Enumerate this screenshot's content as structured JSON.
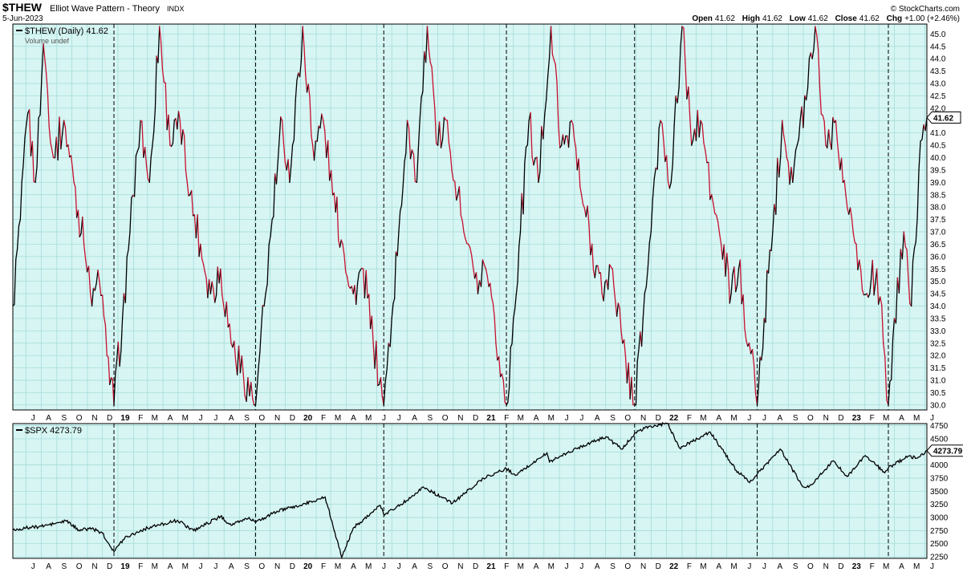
{
  "header": {
    "symbol": "$THEW",
    "name": "Elliot Wave Pattern - Theory",
    "exchange": "INDX",
    "date": "5-Jun-2023",
    "watermark": "© StockCharts.com",
    "ohlc": {
      "open_label": "Open",
      "open": "41.62",
      "high_label": "High",
      "high": "41.62",
      "low_label": "Low",
      "low": "41.62",
      "close_label": "Close",
      "close": "41.62",
      "chg_label": "Chg",
      "chg": "+1.00 (+2.46%)"
    }
  },
  "colors": {
    "panel_bg": "#d6f5f3",
    "grid": "#9fd9d6",
    "up": "#000000",
    "down": "#c8102e",
    "spx_line": "#000000"
  },
  "chart_data": [
    {
      "type": "line",
      "title": "$THEW (Daily) 41.62",
      "legend": "$THEW (Daily) 41.62",
      "volume_note": "Volume undef",
      "last_value_label": "41.62",
      "last_value": 41.62,
      "ylim": [
        29.8,
        45.4
      ],
      "yticks": [
        30.0,
        30.5,
        31.0,
        31.5,
        32.0,
        32.5,
        33.0,
        33.5,
        34.0,
        34.5,
        35.0,
        35.5,
        36.0,
        36.5,
        37.0,
        37.5,
        38.0,
        38.5,
        39.0,
        39.5,
        40.0,
        40.5,
        41.0,
        41.5,
        42.0,
        42.5,
        43.0,
        43.5,
        44.0,
        44.5,
        45.0,
        45.5
      ],
      "ytick_labels": [
        "30.0",
        "30.5",
        "31.0",
        "31.5",
        "32.0",
        "32.5",
        "33.0",
        "33.5",
        "34.0",
        "34.5",
        "35.0",
        "35.5",
        "36.0",
        "36.5",
        "37.0",
        "37.5",
        "38.0",
        "38.5",
        "39.0",
        "39.5",
        "40.0",
        "40.5",
        "41.0",
        "41.5",
        "42.0",
        "42.5",
        "43.0",
        "43.5",
        "44.0",
        "44.5",
        "45.0",
        "45.5"
      ],
      "x_range": [
        "2018-06-05",
        "2023-06-05"
      ],
      "pattern": {
        "description": "repeating Elliott wave cycle",
        "cycle_markers": [
          "2018-12-24",
          "2019-10-03",
          "2020-06-15",
          "2021-02-15",
          "2021-10-29",
          "2022-07-01",
          "2023-03-20"
        ],
        "cycle_low": 30.0,
        "cycle_high": 45.4
      },
      "series": [
        {
          "points": [
            [
              "2018-06-05",
              34.0
            ],
            [
              "2018-06-20",
              37.5
            ],
            [
              "2018-07-05",
              41.8
            ],
            [
              "2018-07-20",
              39.0
            ],
            [
              "2018-08-05",
              44.6
            ],
            [
              "2018-08-25",
              40.0
            ],
            [
              "2018-09-15",
              41.5
            ],
            [
              "2018-10-05",
              39.0
            ],
            [
              "2018-10-25",
              36.5
            ],
            [
              "2018-11-10",
              34.0
            ],
            [
              "2018-11-25",
              35.0
            ],
            [
              "2018-12-10",
              32.0
            ],
            [
              "2018-12-24",
              30.0
            ],
            [
              "2019-01-10",
              33.5
            ],
            [
              "2019-01-25",
              37.0
            ],
            [
              "2019-02-15",
              41.5
            ],
            [
              "2019-03-05",
              39.0
            ],
            [
              "2019-03-25",
              45.3
            ],
            [
              "2019-04-15",
              40.5
            ],
            [
              "2019-05-05",
              41.5
            ],
            [
              "2019-05-25",
              38.5
            ],
            [
              "2019-06-15",
              36.5
            ],
            [
              "2019-07-05",
              34.5
            ],
            [
              "2019-07-25",
              35.5
            ],
            [
              "2019-08-15",
              32.5
            ],
            [
              "2019-10-03",
              30.0
            ],
            [
              "2019-10-20",
              34.0
            ],
            [
              "2019-11-05",
              37.5
            ],
            [
              "2019-11-25",
              41.5
            ],
            [
              "2019-12-10",
              39.0
            ],
            [
              "2020-01-05",
              45.3
            ],
            [
              "2020-01-25",
              40.5
            ],
            [
              "2020-02-15",
              41.5
            ],
            [
              "2020-03-05",
              38.5
            ],
            [
              "2020-03-25",
              36.5
            ],
            [
              "2020-04-15",
              34.5
            ],
            [
              "2020-05-05",
              35.5
            ],
            [
              "2020-05-25",
              32.5
            ],
            [
              "2020-06-15",
              30.0
            ],
            [
              "2020-07-01",
              33.5
            ],
            [
              "2020-07-15",
              37.0
            ],
            [
              "2020-08-01",
              41.5
            ],
            [
              "2020-08-20",
              39.0
            ],
            [
              "2020-09-10",
              45.3
            ],
            [
              "2020-10-01",
              40.5
            ],
            [
              "2020-10-20",
              41.5
            ],
            [
              "2020-11-10",
              38.5
            ],
            [
              "2020-12-01",
              36.5
            ],
            [
              "2020-12-20",
              34.5
            ],
            [
              "2021-01-05",
              35.5
            ],
            [
              "2021-01-25",
              32.5
            ],
            [
              "2021-02-15",
              30.0
            ],
            [
              "2021-03-01",
              33.5
            ],
            [
              "2021-03-15",
              37.0
            ],
            [
              "2021-04-01",
              41.5
            ],
            [
              "2021-04-20",
              39.0
            ],
            [
              "2021-05-15",
              45.3
            ],
            [
              "2021-06-05",
              40.5
            ],
            [
              "2021-06-25",
              41.5
            ],
            [
              "2021-07-15",
              38.5
            ],
            [
              "2021-08-05",
              36.5
            ],
            [
              "2021-08-25",
              34.5
            ],
            [
              "2021-09-15",
              35.5
            ],
            [
              "2021-10-05",
              32.5
            ],
            [
              "2021-10-29",
              30.0
            ],
            [
              "2021-11-15",
              33.5
            ],
            [
              "2021-12-01",
              37.0
            ],
            [
              "2021-12-20",
              41.5
            ],
            [
              "2022-01-10",
              39.0
            ],
            [
              "2022-02-01",
              45.3
            ],
            [
              "2022-02-20",
              40.5
            ],
            [
              "2022-03-10",
              41.5
            ],
            [
              "2022-04-01",
              38.5
            ],
            [
              "2022-04-20",
              36.5
            ],
            [
              "2022-05-10",
              34.5
            ],
            [
              "2022-05-25",
              35.5
            ],
            [
              "2022-06-15",
              32.5
            ],
            [
              "2022-07-01",
              30.0
            ],
            [
              "2022-07-15",
              33.5
            ],
            [
              "2022-08-01",
              37.0
            ],
            [
              "2022-08-20",
              41.5
            ],
            [
              "2022-09-10",
              39.0
            ],
            [
              "2022-10-25",
              45.3
            ],
            [
              "2022-11-15",
              40.5
            ],
            [
              "2022-12-05",
              41.5
            ],
            [
              "2022-12-25",
              38.5
            ],
            [
              "2023-01-15",
              36.5
            ],
            [
              "2023-02-05",
              34.5
            ],
            [
              "2023-02-25",
              35.5
            ],
            [
              "2023-03-10",
              32.5
            ],
            [
              "2023-03-20",
              30.0
            ],
            [
              "2023-04-01",
              33.5
            ],
            [
              "2023-04-20",
              37.0
            ],
            [
              "2023-05-05",
              34.0
            ],
            [
              "2023-05-20",
              39.5
            ],
            [
              "2023-06-05",
              41.62
            ]
          ]
        }
      ]
    },
    {
      "type": "line",
      "title": "$SPX 4273.79",
      "legend": "$SPX 4273.79",
      "last_value_label": "4273.79",
      "last_value": 4273.79,
      "ylim": [
        2220,
        4790
      ],
      "yticks": [
        2250,
        2500,
        2750,
        3000,
        3250,
        3500,
        3750,
        4000,
        4250,
        4500,
        4750
      ],
      "ytick_labels": [
        "2250",
        "2500",
        "2750",
        "3000",
        "3250",
        "3500",
        "3750",
        "4000",
        "4250",
        "4500",
        "4750"
      ],
      "x_range": [
        "2018-06-05",
        "2023-06-05"
      ],
      "series": [
        {
          "points": [
            [
              "2018-06-05",
              2760
            ],
            [
              "2018-07-01",
              2800
            ],
            [
              "2018-08-01",
              2830
            ],
            [
              "2018-09-20",
              2930
            ],
            [
              "2018-10-15",
              2760
            ],
            [
              "2018-11-10",
              2790
            ],
            [
              "2018-12-01",
              2700
            ],
            [
              "2018-12-24",
              2350
            ],
            [
              "2019-01-15",
              2620
            ],
            [
              "2019-03-01",
              2800
            ],
            [
              "2019-04-30",
              2945
            ],
            [
              "2019-06-01",
              2750
            ],
            [
              "2019-07-25",
              3020
            ],
            [
              "2019-08-15",
              2850
            ],
            [
              "2019-09-20",
              3000
            ],
            [
              "2019-10-03",
              2900
            ],
            [
              "2019-11-15",
              3120
            ],
            [
              "2019-12-31",
              3230
            ],
            [
              "2020-02-19",
              3390
            ],
            [
              "2020-03-23",
              2237
            ],
            [
              "2020-04-15",
              2800
            ],
            [
              "2020-06-08",
              3230
            ],
            [
              "2020-06-15",
              3060
            ],
            [
              "2020-07-20",
              3250
            ],
            [
              "2020-09-02",
              3580
            ],
            [
              "2020-10-30",
              3270
            ],
            [
              "2020-12-31",
              3750
            ],
            [
              "2021-02-15",
              3930
            ],
            [
              "2021-03-05",
              3800
            ],
            [
              "2021-05-07",
              4230
            ],
            [
              "2021-05-12",
              4060
            ],
            [
              "2021-07-15",
              4360
            ],
            [
              "2021-09-02",
              4540
            ],
            [
              "2021-10-04",
              4300
            ],
            [
              "2021-10-29",
              4600
            ],
            [
              "2021-11-18",
              4700
            ],
            [
              "2022-01-03",
              4796
            ],
            [
              "2022-01-27",
              4320
            ],
            [
              "2022-03-29",
              4630
            ],
            [
              "2022-05-20",
              3900
            ],
            [
              "2022-06-16",
              3666
            ],
            [
              "2022-07-01",
              3825
            ],
            [
              "2022-08-16",
              4305
            ],
            [
              "2022-09-30",
              3585
            ],
            [
              "2022-10-12",
              3577
            ],
            [
              "2022-11-30",
              4080
            ],
            [
              "2022-12-28",
              3780
            ],
            [
              "2023-02-02",
              4180
            ],
            [
              "2023-03-13",
              3850
            ],
            [
              "2023-03-20",
              3950
            ],
            [
              "2023-04-30",
              4170
            ],
            [
              "2023-05-15",
              4130
            ],
            [
              "2023-06-05",
              4273.79
            ]
          ]
        }
      ]
    }
  ],
  "x_axis": {
    "month_ticks": [
      [
        "2018-07-01",
        "J"
      ],
      [
        "2018-08-01",
        "A"
      ],
      [
        "2018-09-01",
        "S"
      ],
      [
        "2018-10-01",
        "O"
      ],
      [
        "2018-11-01",
        "N"
      ],
      [
        "2018-12-01",
        "D"
      ],
      [
        "2019-01-01",
        "19"
      ],
      [
        "2019-02-01",
        "F"
      ],
      [
        "2019-03-01",
        "M"
      ],
      [
        "2019-04-01",
        "A"
      ],
      [
        "2019-05-01",
        "M"
      ],
      [
        "2019-06-01",
        "J"
      ],
      [
        "2019-07-01",
        "J"
      ],
      [
        "2019-08-01",
        "A"
      ],
      [
        "2019-09-01",
        "S"
      ],
      [
        "2019-10-01",
        "O"
      ],
      [
        "2019-11-01",
        "N"
      ],
      [
        "2019-12-01",
        "D"
      ],
      [
        "2020-01-01",
        "20"
      ],
      [
        "2020-02-01",
        "F"
      ],
      [
        "2020-03-01",
        "M"
      ],
      [
        "2020-04-01",
        "A"
      ],
      [
        "2020-05-01",
        "M"
      ],
      [
        "2020-06-01",
        "J"
      ],
      [
        "2020-07-01",
        "J"
      ],
      [
        "2020-08-01",
        "A"
      ],
      [
        "2020-09-01",
        "S"
      ],
      [
        "2020-10-01",
        "O"
      ],
      [
        "2020-11-01",
        "N"
      ],
      [
        "2020-12-01",
        "D"
      ],
      [
        "2021-01-01",
        "21"
      ],
      [
        "2021-02-01",
        "F"
      ],
      [
        "2021-03-01",
        "M"
      ],
      [
        "2021-04-01",
        "A"
      ],
      [
        "2021-05-01",
        "M"
      ],
      [
        "2021-06-01",
        "J"
      ],
      [
        "2021-07-01",
        "J"
      ],
      [
        "2021-08-01",
        "A"
      ],
      [
        "2021-09-01",
        "S"
      ],
      [
        "2021-10-01",
        "O"
      ],
      [
        "2021-11-01",
        "N"
      ],
      [
        "2021-12-01",
        "D"
      ],
      [
        "2022-01-01",
        "22"
      ],
      [
        "2022-02-01",
        "F"
      ],
      [
        "2022-03-01",
        "M"
      ],
      [
        "2022-04-01",
        "A"
      ],
      [
        "2022-05-01",
        "M"
      ],
      [
        "2022-06-01",
        "J"
      ],
      [
        "2022-07-01",
        "J"
      ],
      [
        "2022-08-01",
        "A"
      ],
      [
        "2022-09-01",
        "S"
      ],
      [
        "2022-10-01",
        "O"
      ],
      [
        "2022-11-01",
        "N"
      ],
      [
        "2022-12-01",
        "D"
      ],
      [
        "2023-01-01",
        "23"
      ],
      [
        "2023-02-01",
        "F"
      ],
      [
        "2023-03-01",
        "M"
      ],
      [
        "2023-04-01",
        "A"
      ],
      [
        "2023-05-01",
        "M"
      ],
      [
        "2023-06-01",
        "J"
      ]
    ]
  }
}
